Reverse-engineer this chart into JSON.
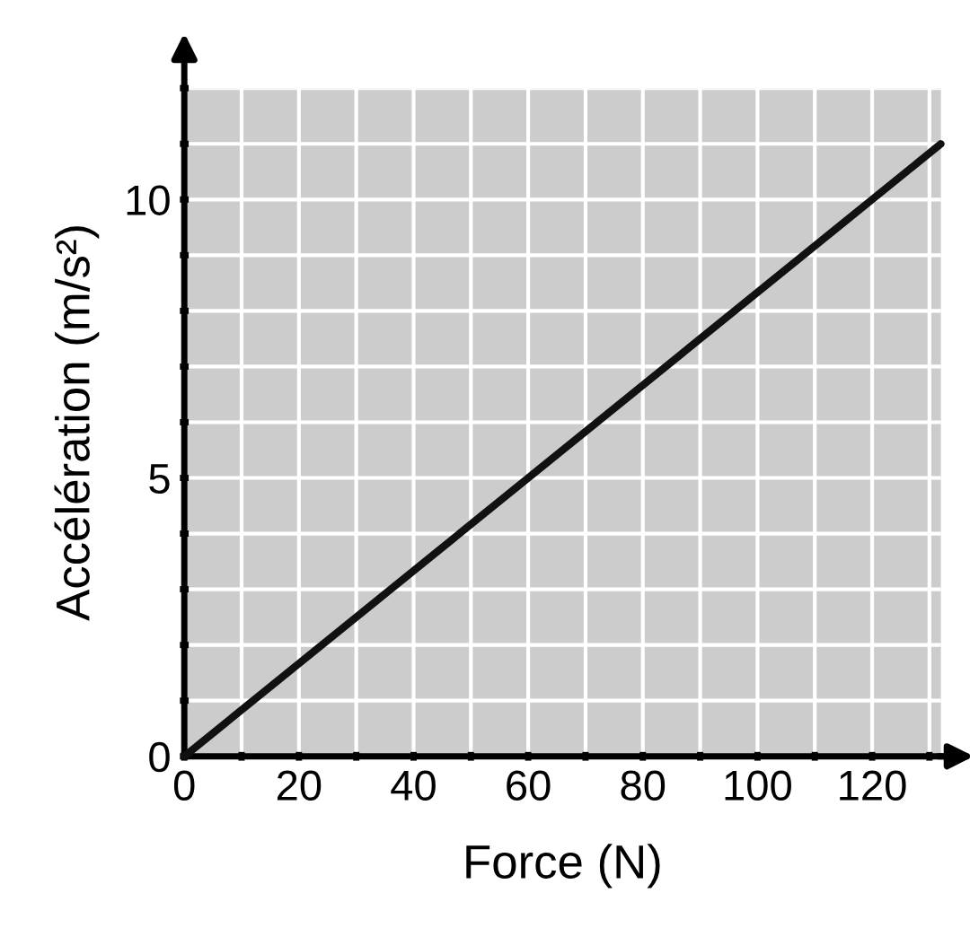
{
  "chart_data": {
    "type": "line",
    "xlabel": "Force (N)",
    "ylabel": "Accélération (m/s²)",
    "x": [
      0,
      132
    ],
    "series": [
      {
        "color": "#111111",
        "values": [
          0,
          11
        ]
      }
    ],
    "xlim": [
      0,
      132
    ],
    "ylim": [
      0,
      12
    ],
    "xticks": [
      0,
      {
        "value": 10,
        "label": null
      },
      20,
      {
        "value": 30,
        "label": null
      },
      40,
      {
        "value": 50,
        "label": null
      },
      60,
      {
        "value": 70,
        "label": null
      },
      80,
      {
        "value": 90,
        "label": null
      },
      100,
      {
        "value": 110,
        "label": null
      },
      120,
      {
        "value": 130,
        "label": null
      }
    ],
    "yticks": [
      0,
      {
        "value": 1,
        "label": null
      },
      {
        "value": 2,
        "label": null
      },
      {
        "value": 3,
        "label": null
      },
      {
        "value": 4,
        "label": null
      },
      5,
      {
        "value": 6,
        "label": null
      },
      {
        "value": 7,
        "label": null
      },
      {
        "value": 8,
        "label": null
      },
      {
        "value": 9,
        "label": null
      },
      10,
      {
        "value": 11,
        "label": null
      },
      {
        "value": 12,
        "label": null
      }
    ],
    "grid": true,
    "marker": "none",
    "line_style": "solid"
  }
}
